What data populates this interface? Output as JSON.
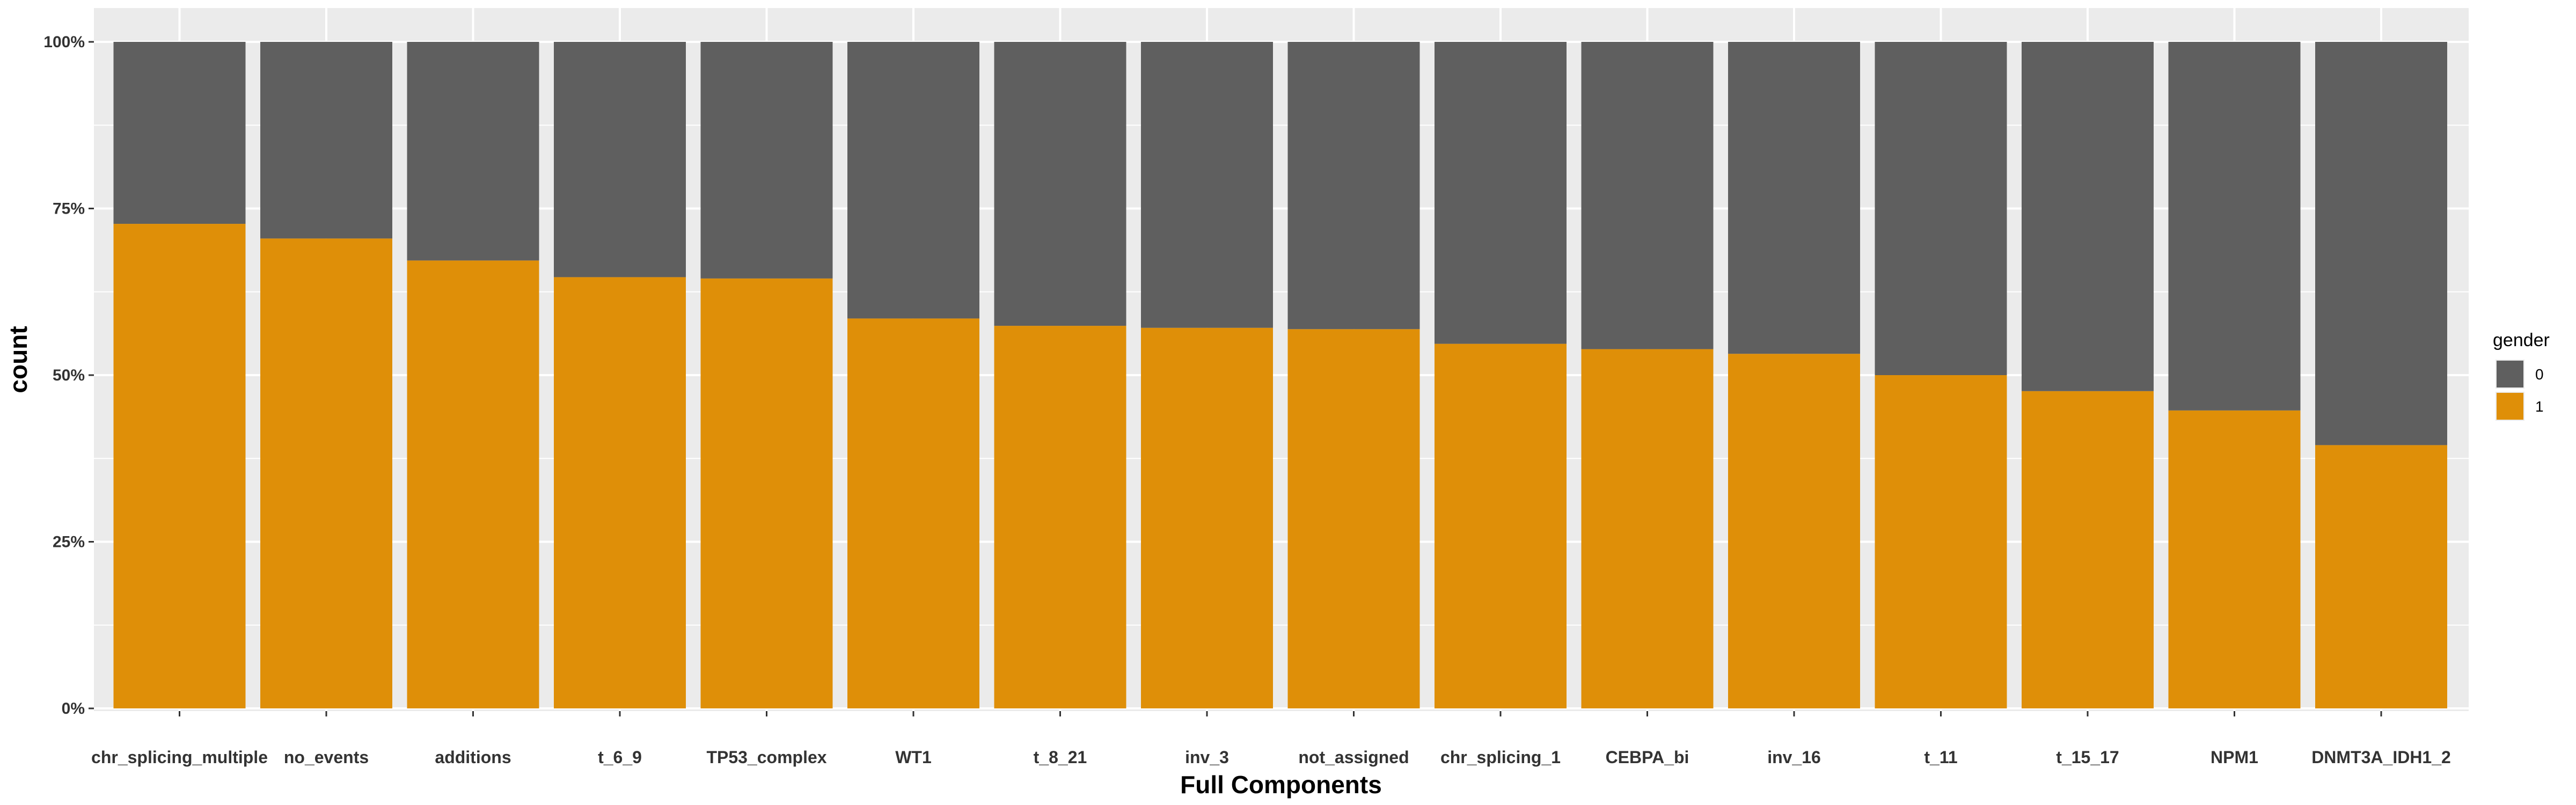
{
  "chart_data": {
    "type": "bar",
    "stacked": true,
    "position": "fill",
    "xlabel": "Full Components",
    "ylabel": "count",
    "categories": [
      "chr_splicing_multiple",
      "no_events",
      "additions",
      "t_6_9",
      "TP53_complex",
      "WT1",
      "t_8_21",
      "inv_3",
      "not_assigned",
      "chr_splicing_1",
      "CEBPA_bi",
      "inv_16",
      "t_11",
      "t_15_17",
      "NPM1",
      "DNMT3A_IDH1_2"
    ],
    "series": [
      {
        "name": "0",
        "color": "#5f5f5f",
        "values": [
          0.273,
          0.295,
          0.328,
          0.353,
          0.355,
          0.415,
          0.426,
          0.429,
          0.431,
          0.453,
          0.461,
          0.468,
          0.5,
          0.524,
          0.553,
          0.605
        ]
      },
      {
        "name": "1",
        "color": "#df8f08",
        "values": [
          0.727,
          0.705,
          0.672,
          0.647,
          0.645,
          0.585,
          0.574,
          0.571,
          0.569,
          0.547,
          0.539,
          0.532,
          0.5,
          0.476,
          0.447,
          0.395
        ]
      }
    ],
    "ylim": [
      0,
      1
    ],
    "yticks": [
      0,
      0.25,
      0.5,
      0.75,
      1
    ],
    "ytick_labels": [
      "0%",
      "25%",
      "50%",
      "75%",
      "100%"
    ],
    "grid": true,
    "panel_background": "#ebebeb",
    "legend": {
      "title": "gender",
      "placement": "right",
      "entries": [
        "0",
        "1"
      ]
    }
  }
}
